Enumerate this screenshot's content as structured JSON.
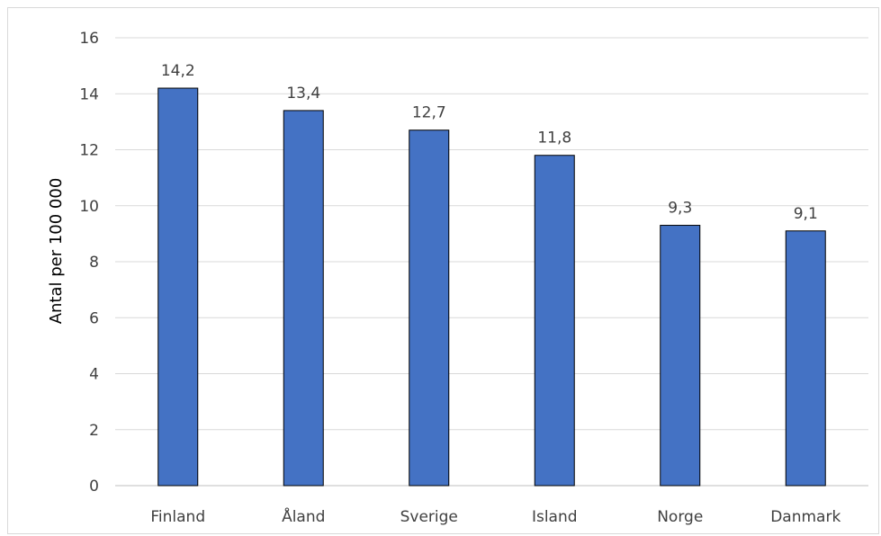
{
  "chart_data": {
    "type": "bar",
    "title": "",
    "xlabel": "",
    "ylabel": "Antal per 100 000",
    "categories": [
      "Finland",
      "Åland",
      "Sverige",
      "Island",
      "Norge",
      "Danmark"
    ],
    "values": [
      14.2,
      13.4,
      12.7,
      11.8,
      9.3,
      9.1
    ],
    "data_labels": [
      "14,2",
      "13,4",
      "12,7",
      "11,8",
      "9,3",
      "9,1"
    ],
    "ylim": [
      0,
      16
    ],
    "yticks": [
      "0",
      "2",
      "4",
      "6",
      "8",
      "10",
      "12",
      "14",
      "16"
    ],
    "grid": true,
    "legend": "none",
    "bar_color": "#4472c4",
    "bar_border_color": "#000000",
    "grid_color": "#d9d9d9"
  }
}
